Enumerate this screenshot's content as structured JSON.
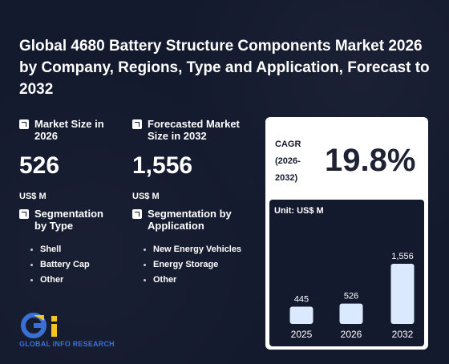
{
  "title": "Global 4680 Battery Structure Components Market 2026 by Company, Regions, Type and Application, Forecast to 2032",
  "market_size": {
    "label": "Market Size in 2026",
    "value": "526",
    "unit": "US$ M"
  },
  "forecast": {
    "label": "Forecasted Market Size in 2032",
    "value": "1,556",
    "unit": "US$ M"
  },
  "seg_type": {
    "label": "Segmentation by Type",
    "items": [
      "Shell",
      "Battery Cap",
      "Other"
    ]
  },
  "seg_app": {
    "label": "Segmentation by Application",
    "items": [
      "New Energy Vehicles",
      "Energy Storage",
      "Other"
    ]
  },
  "cagr": {
    "label_line1": "CAGR",
    "label_line2": "(2026-",
    "label_line3": "2032)",
    "value": "19.8%"
  },
  "logo": {
    "text": "GLOBAL INFO RESEARCH"
  },
  "colors": {
    "background": "#141a2e",
    "bar": "#dbe9ff",
    "logo_blue": "#3b6fd4",
    "logo_yellow": "#f5c51f"
  },
  "chart_data": {
    "type": "bar",
    "unit_label": "Unit: US$ M",
    "categories": [
      "2025",
      "2026",
      "2032"
    ],
    "values": [
      445,
      526,
      1556
    ],
    "value_labels": [
      "445",
      "526",
      "1,556"
    ]
  }
}
